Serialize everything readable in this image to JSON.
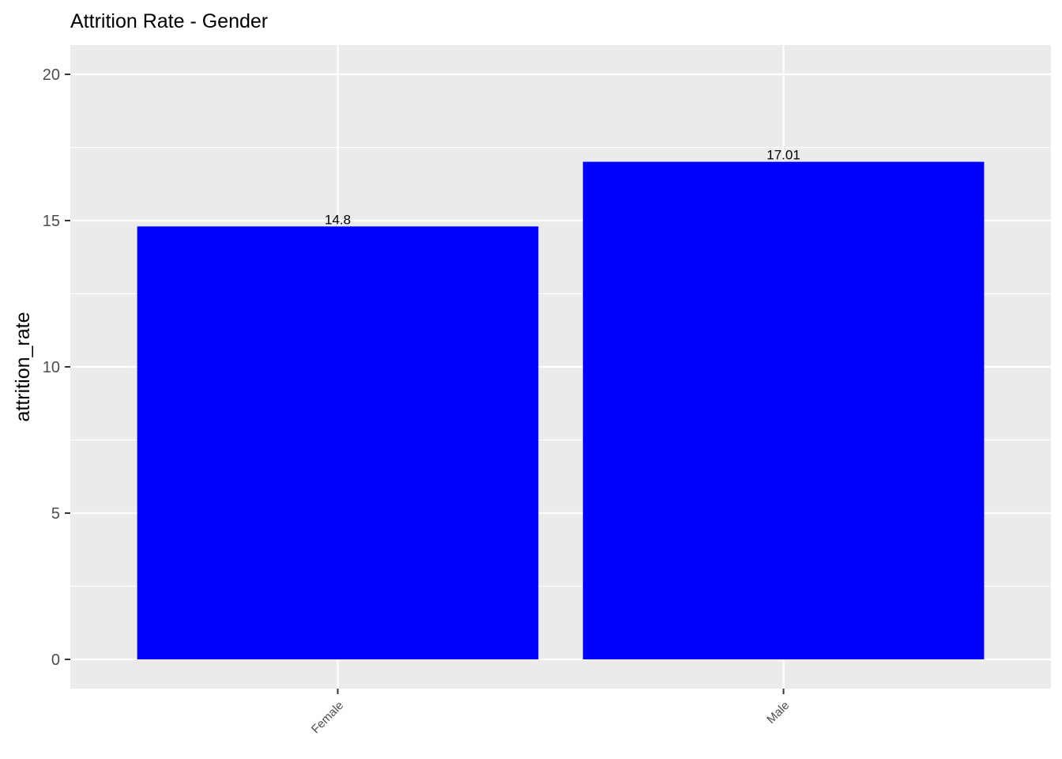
{
  "chart_data": {
    "type": "bar",
    "title": "Attrition Rate - Gender",
    "xlabel": "",
    "ylabel": "attrition_rate",
    "categories": [
      "Female",
      "Male"
    ],
    "values": [
      14.8,
      17.01
    ],
    "data_labels": [
      "14.8",
      "17.01"
    ],
    "ylim": [
      -1,
      21
    ],
    "yticks": [
      0,
      5,
      10,
      15,
      20
    ],
    "ytick_labels": [
      "0",
      "5",
      "10",
      "15",
      "20"
    ],
    "grid": true,
    "legend": "none",
    "bar_color": "#0000ff",
    "panel_color": "#ebebeb",
    "grid_color": "#ffffff"
  }
}
